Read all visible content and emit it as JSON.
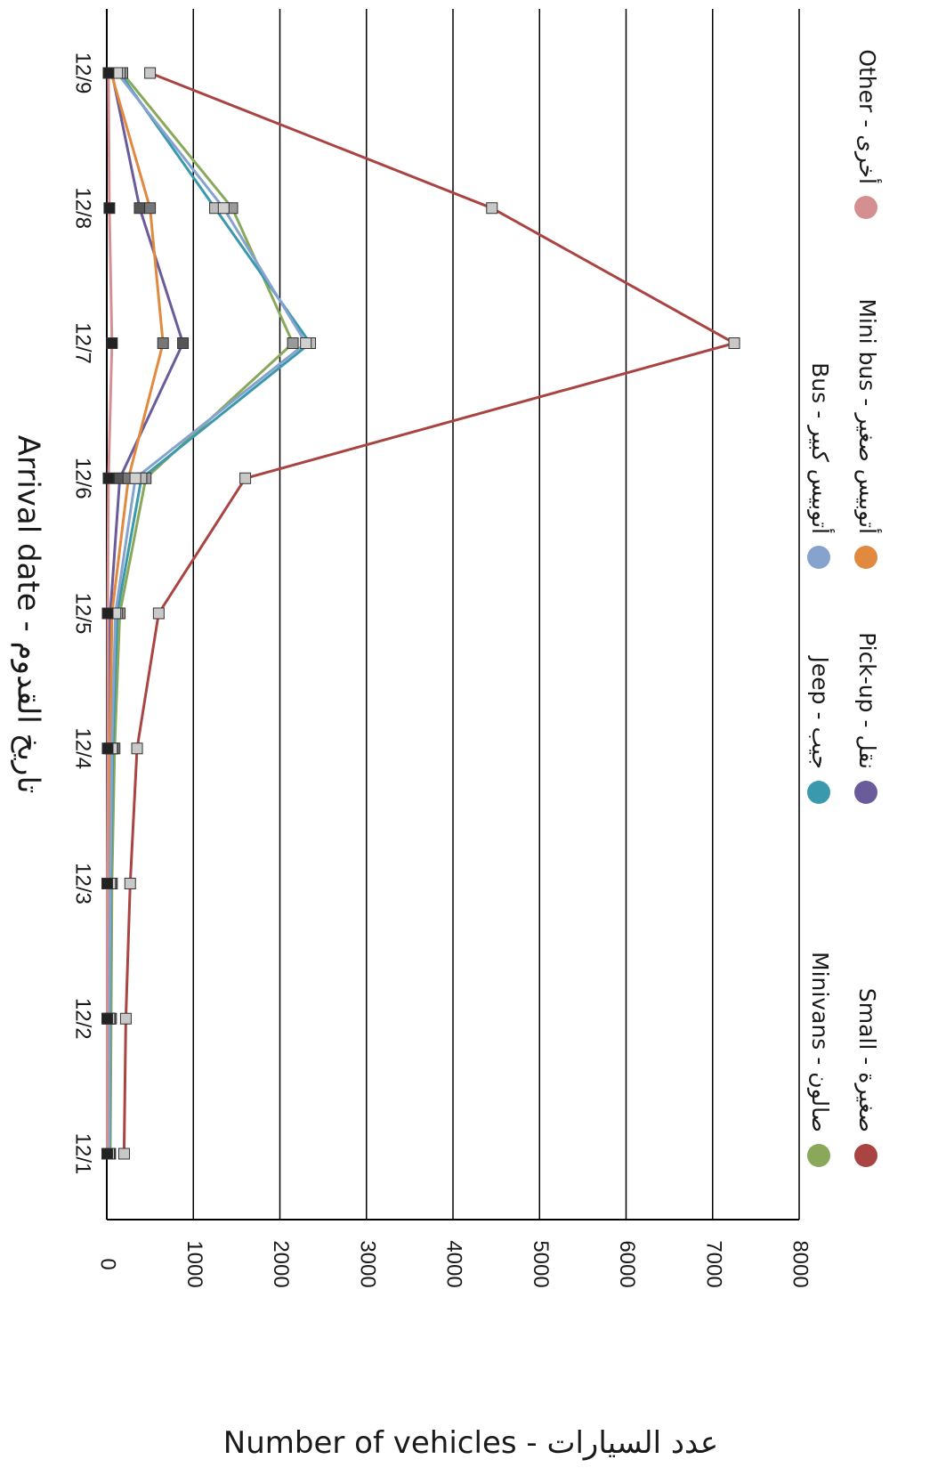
{
  "chart_data": {
    "type": "line",
    "orientation": "rotated-90-clockwise",
    "categories": [
      "12/1",
      "12/2",
      "12/3",
      "12/4",
      "12/5",
      "12/6",
      "12/7",
      "12/8",
      "12/9"
    ],
    "xlabel": "Arrival date - تاريخ القدوم",
    "ylabel": "Number of vehicles - عدد السيارات",
    "ylim": [
      0,
      8000
    ],
    "yticks": [
      0,
      1000,
      2000,
      3000,
      4000,
      5000,
      6000,
      7000,
      8000
    ],
    "grid": true,
    "legend_position": "right",
    "series": [
      {
        "name": "Small - صغيرة",
        "color": "#a94442",
        "values": [
          200,
          220,
          270,
          350,
          600,
          1600,
          7250,
          4450,
          500
        ]
      },
      {
        "name": "Minivans - صالون",
        "color": "#8aa85a",
        "values": [
          40,
          50,
          60,
          90,
          150,
          450,
          2150,
          1450,
          180
        ]
      },
      {
        "name": "Pick-up - نقل",
        "color": "#6a5b9a",
        "values": [
          10,
          15,
          20,
          30,
          40,
          150,
          880,
          380,
          60
        ]
      },
      {
        "name": "Jeep - جيب",
        "color": "#3a99ad",
        "values": [
          30,
          35,
          45,
          70,
          120,
          400,
          2350,
          1250,
          150
        ]
      },
      {
        "name": "Mini bus - أتوبيس صغير",
        "color": "#e0893f",
        "values": [
          15,
          20,
          25,
          40,
          60,
          250,
          650,
          500,
          50
        ]
      },
      {
        "name": "Bus - أتوبيس كبير",
        "color": "#85a3cc",
        "values": [
          25,
          30,
          40,
          60,
          100,
          330,
          2300,
          1350,
          120
        ]
      },
      {
        "name": "Other - أخرى",
        "color": "#d49090",
        "values": [
          5,
          5,
          5,
          10,
          10,
          20,
          60,
          30,
          20
        ]
      }
    ]
  }
}
